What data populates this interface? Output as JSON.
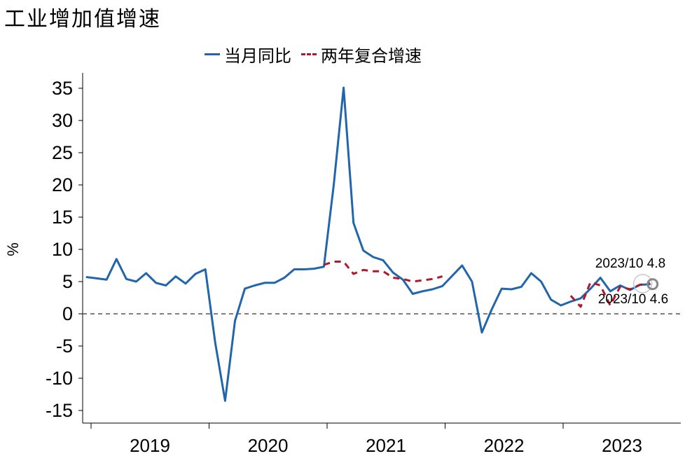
{
  "title": "工业增加值增速",
  "legend": {
    "items": [
      {
        "label": "当月同比",
        "style": "solid",
        "color": "#2166ac"
      },
      {
        "label": "两年复合增速",
        "style": "dashed",
        "color": "#b2182b"
      }
    ]
  },
  "chart_data": {
    "type": "line",
    "ylabel": "%",
    "ylim": [
      -15,
      35
    ],
    "yticks": [
      35,
      30,
      25,
      20,
      15,
      10,
      5,
      0,
      -5,
      -10,
      -15
    ],
    "x_groups": [
      "2019",
      "2020",
      "2021",
      "2022",
      "2023"
    ],
    "x": [
      "2019-01",
      "2019-02",
      "2019-03",
      "2019-04",
      "2019-05",
      "2019-06",
      "2019-07",
      "2019-08",
      "2019-09",
      "2019-10",
      "2019-11",
      "2019-12",
      "2020-01",
      "2020-02",
      "2020-03",
      "2020-04",
      "2020-05",
      "2020-06",
      "2020-07",
      "2020-08",
      "2020-09",
      "2020-10",
      "2020-11",
      "2020-12",
      "2021-01",
      "2021-02",
      "2021-03",
      "2021-04",
      "2021-05",
      "2021-06",
      "2021-07",
      "2021-08",
      "2021-09",
      "2021-10",
      "2021-11",
      "2021-12",
      "2022-01",
      "2022-02",
      "2022-03",
      "2022-04",
      "2022-05",
      "2022-06",
      "2022-07",
      "2022-08",
      "2022-09",
      "2022-10",
      "2022-11",
      "2022-12",
      "2023-01",
      "2023-02",
      "2023-03",
      "2023-04",
      "2023-05",
      "2023-06",
      "2023-07",
      "2023-08",
      "2023-09",
      "2023-10"
    ],
    "series": [
      {
        "name": "当月同比",
        "style": "solid",
        "color": "#2166ac",
        "values": [
          5.7,
          5.5,
          5.3,
          8.5,
          5.4,
          5.0,
          6.3,
          4.8,
          4.4,
          5.8,
          4.7,
          6.2,
          6.9,
          -4.5,
          -13.5,
          -1.1,
          3.9,
          4.4,
          4.8,
          4.8,
          5.6,
          6.9,
          6.9,
          7.0,
          7.3,
          20.0,
          35.1,
          14.1,
          9.8,
          8.8,
          8.3,
          6.4,
          5.3,
          3.1,
          3.5,
          3.8,
          4.3,
          5.9,
          7.5,
          5.0,
          -2.9,
          0.7,
          3.9,
          3.8,
          4.2,
          6.3,
          5.0,
          2.2,
          1.3,
          1.9,
          2.4,
          3.9,
          5.6,
          3.5,
          4.4,
          3.7,
          4.5,
          4.6
        ]
      },
      {
        "name": "两年复合增速",
        "style": "dashed",
        "color": "#b2182b",
        "values": [
          null,
          null,
          null,
          null,
          null,
          null,
          null,
          null,
          null,
          null,
          null,
          null,
          null,
          null,
          null,
          null,
          null,
          null,
          null,
          null,
          null,
          null,
          null,
          null,
          7.6,
          8.1,
          8.1,
          6.2,
          6.8,
          6.6,
          6.6,
          5.6,
          5.4,
          5.0,
          5.2,
          5.4,
          5.8,
          null,
          null,
          null,
          null,
          null,
          null,
          null,
          null,
          null,
          null,
          null,
          null,
          2.8,
          1.1,
          4.9,
          4.4,
          1.3,
          4.2,
          3.8,
          4.5,
          4.8
        ]
      }
    ],
    "reference_line": {
      "y": 0,
      "style": "dashed",
      "color": "#555555"
    },
    "annotations": [
      {
        "text": "2023/10 4.8"
      },
      {
        "text": "2023/10 4.6"
      }
    ]
  }
}
